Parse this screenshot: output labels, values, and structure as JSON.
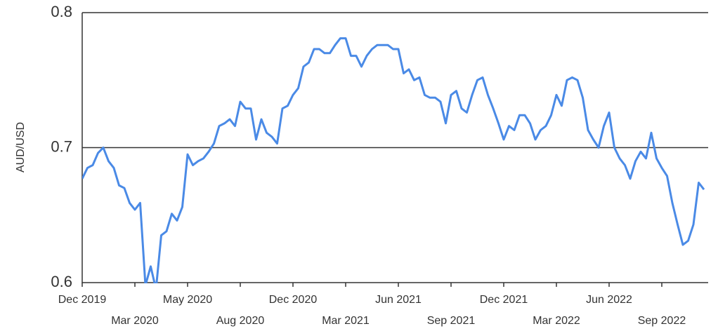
{
  "chart_data": {
    "type": "line",
    "y_label": "AUD/USD",
    "categories": [
      "Dec 2019",
      null,
      null,
      null,
      null,
      null,
      null,
      null,
      null,
      null,
      "Mar 2020",
      null,
      null,
      null,
      null,
      null,
      null,
      null,
      null,
      null,
      "May 2020",
      null,
      null,
      null,
      null,
      null,
      null,
      null,
      null,
      null,
      "Aug 2020",
      null,
      null,
      null,
      null,
      null,
      null,
      null,
      null,
      null,
      "Dec 2020",
      null,
      null,
      null,
      null,
      null,
      null,
      null,
      null,
      null,
      "Mar 2021",
      null,
      null,
      null,
      null,
      null,
      null,
      null,
      null,
      null,
      "Jun 2021",
      null,
      null,
      null,
      null,
      null,
      null,
      null,
      null,
      null,
      "Sep 2021",
      null,
      null,
      null,
      null,
      null,
      null,
      null,
      null,
      null,
      "Dec 2021",
      null,
      null,
      null,
      null,
      null,
      null,
      null,
      null,
      null,
      "Mar 2022",
      null,
      null,
      null,
      null,
      null,
      null,
      null,
      null,
      null,
      "Jun 2022",
      null,
      null,
      null,
      null,
      null,
      null,
      null,
      null,
      null,
      "Sep 2022",
      null,
      null,
      null,
      null,
      null,
      null,
      null,
      null
    ],
    "series": [
      {
        "name": "AUD/USD",
        "color": "#4a8ae6",
        "values": [
          0.677,
          0.685,
          0.687,
          0.696,
          0.7,
          0.69,
          0.685,
          0.672,
          0.67,
          0.659,
          0.654,
          0.659,
          0.598,
          0.612,
          0.595,
          0.635,
          0.638,
          0.651,
          0.646,
          0.656,
          0.695,
          0.687,
          0.69,
          0.692,
          0.697,
          0.703,
          0.716,
          0.718,
          0.721,
          0.716,
          0.734,
          0.729,
          0.729,
          0.706,
          0.721,
          0.711,
          0.708,
          0.703,
          0.729,
          0.731,
          0.739,
          0.744,
          0.76,
          0.763,
          0.773,
          0.773,
          0.77,
          0.77,
          0.776,
          0.781,
          0.781,
          0.768,
          0.768,
          0.76,
          0.768,
          0.773,
          0.776,
          0.776,
          0.776,
          0.773,
          0.773,
          0.755,
          0.758,
          0.75,
          0.752,
          0.739,
          0.737,
          0.737,
          0.734,
          0.718,
          0.739,
          0.742,
          0.729,
          0.726,
          0.739,
          0.75,
          0.752,
          0.739,
          0.729,
          0.718,
          0.706,
          0.716,
          0.713,
          0.724,
          0.724,
          0.718,
          0.706,
          0.713,
          0.716,
          0.724,
          0.739,
          0.731,
          0.75,
          0.752,
          0.75,
          0.737,
          0.713,
          0.706,
          0.7,
          0.716,
          0.726,
          0.7,
          0.692,
          0.687,
          0.677,
          0.69,
          0.697,
          0.692,
          0.711,
          0.692,
          0.685,
          0.679,
          0.659,
          0.643,
          0.628,
          0.631,
          0.643,
          0.674,
          0.669
        ]
      }
    ],
    "ylim": [
      0.6,
      0.8
    ],
    "yticks": [
      0.6,
      0.7,
      0.8
    ],
    "grid": true
  }
}
